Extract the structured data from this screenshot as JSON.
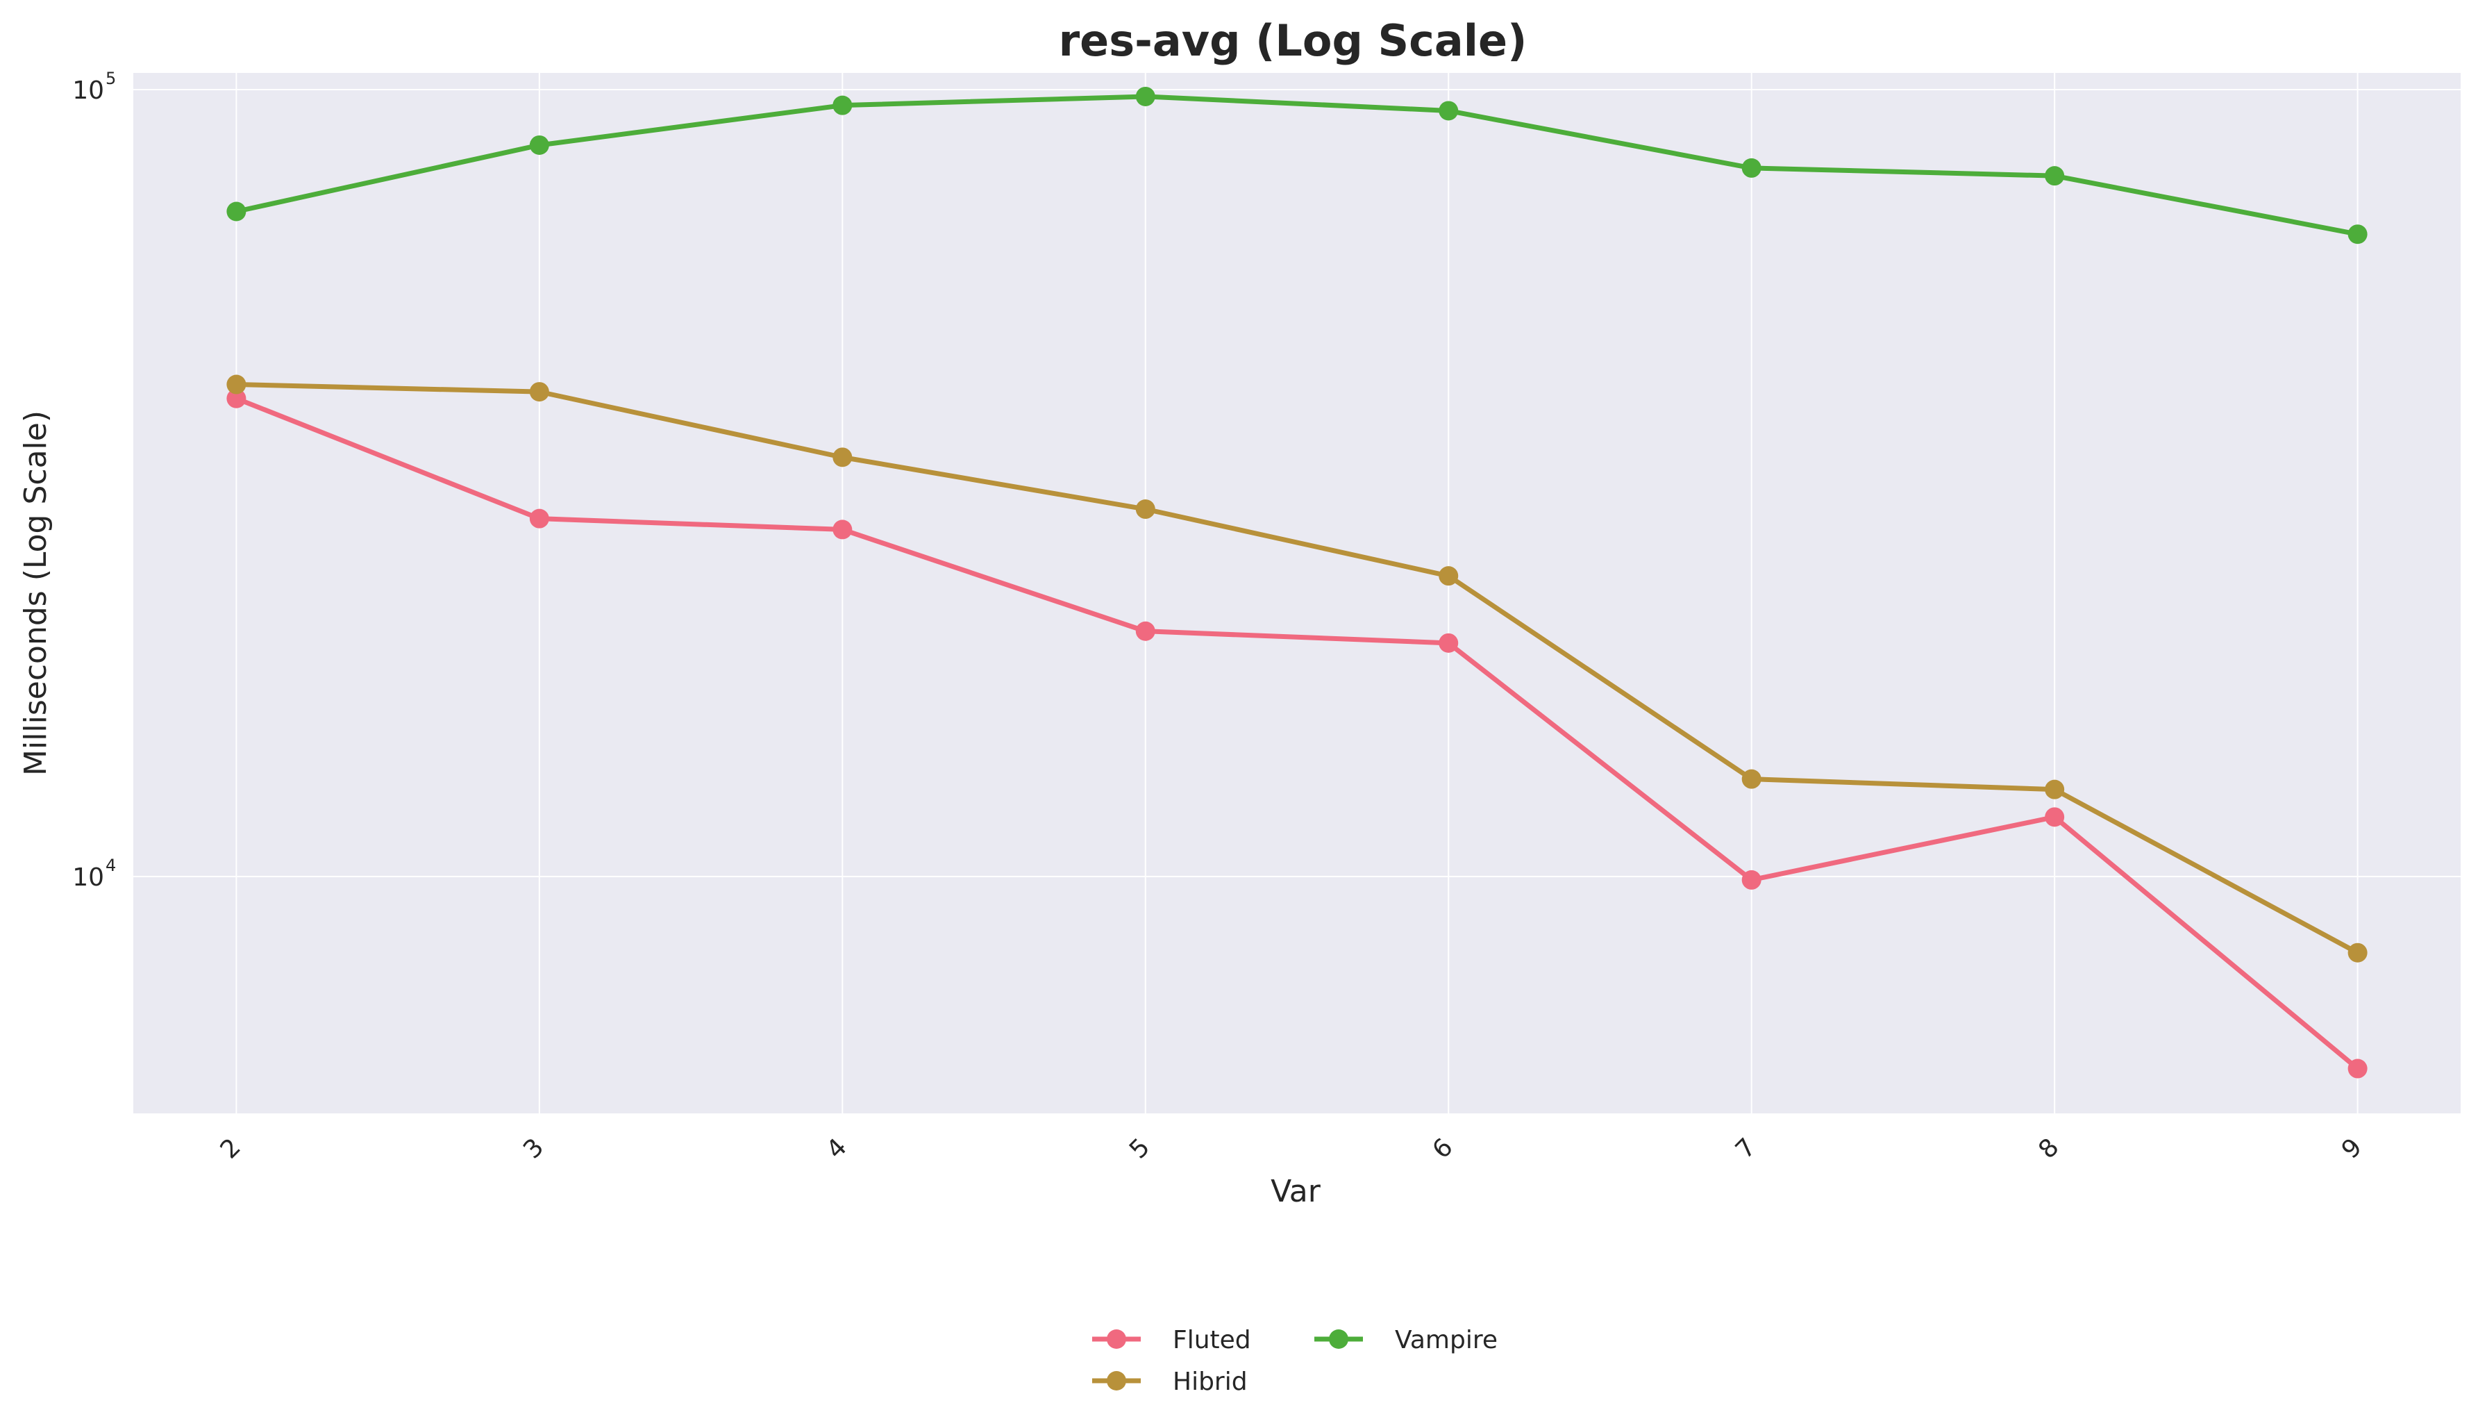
{
  "chart_data": {
    "type": "line",
    "title": "res-avg (Log Scale)",
    "xlabel": "Var",
    "ylabel": "Milliseconds (Log Scale)",
    "yscale": "log",
    "ylim": [
      5000,
      105000
    ],
    "x": [
      2,
      3,
      4,
      5,
      6,
      7,
      8,
      9
    ],
    "xtick_labels": [
      "2",
      "3",
      "4",
      "5",
      "6",
      "7",
      "8",
      "9"
    ],
    "ytick_labels": [
      {
        "value": 10000,
        "base": "10",
        "exp": "4"
      },
      {
        "value": 100000,
        "base": "10",
        "exp": "5"
      }
    ],
    "grid": true,
    "legend_position": "bottom-center",
    "series": [
      {
        "name": "Fluted",
        "color": "#f0697f",
        "values": [
          40500,
          28500,
          27600,
          20500,
          19800,
          9900,
          11900,
          5700
        ]
      },
      {
        "name": "Hibrid",
        "color": "#b8913a",
        "values": [
          42200,
          41300,
          34100,
          29300,
          24100,
          13300,
          12900,
          8000
        ]
      },
      {
        "name": "Vampire",
        "color": "#4dad3a",
        "values": [
          70000,
          85000,
          95500,
          98000,
          94000,
          79500,
          77700,
          65500
        ]
      }
    ]
  }
}
